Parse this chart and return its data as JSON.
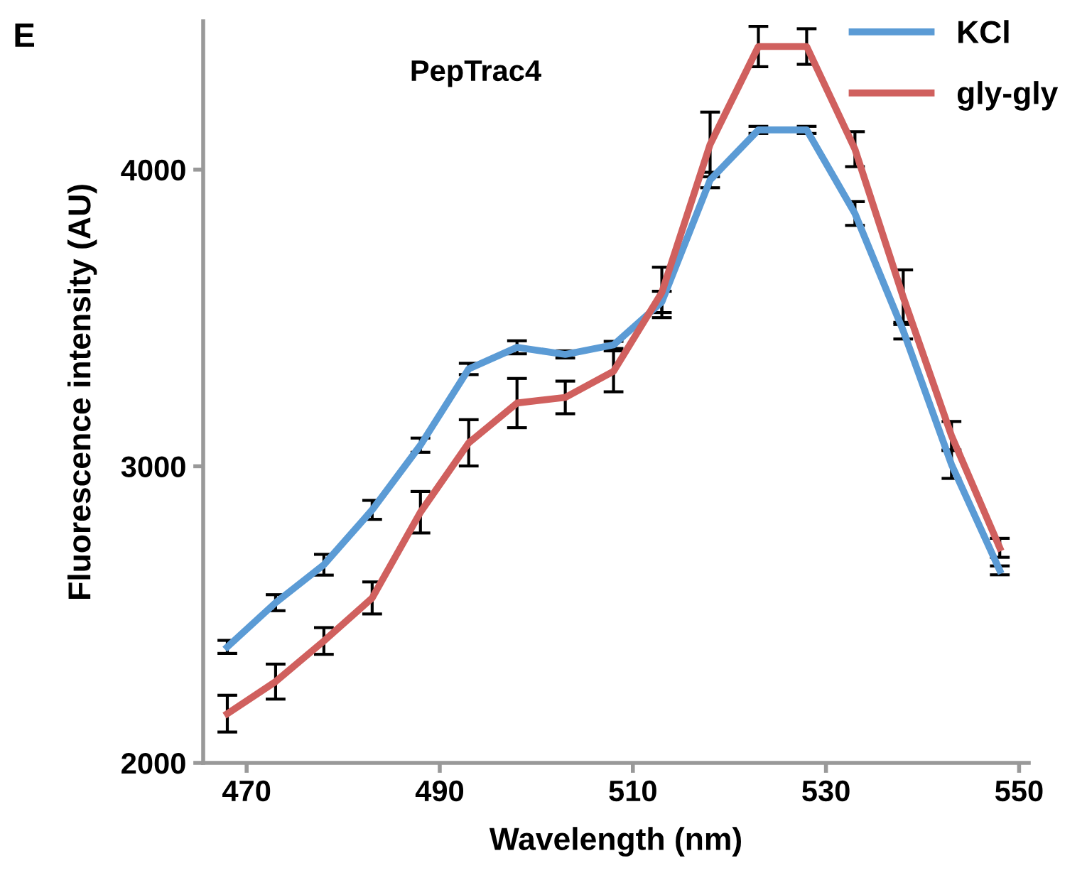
{
  "chart_data": {
    "type": "line",
    "title": "PepTrac4",
    "xlabel": "Wavelength (nm)",
    "ylabel": "Fluorescence intensity (AU)",
    "annotations": [
      "E"
    ],
    "x": [
      468,
      473,
      478,
      483,
      488,
      493,
      498,
      503,
      508,
      513,
      518,
      523,
      528,
      533,
      538,
      543,
      548
    ],
    "series": [
      {
        "name": "KCl",
        "color": "#5b9bd5",
        "values": [
          2391,
          2540,
          2668,
          2853,
          3071,
          3328,
          3401,
          3377,
          3409,
          3554,
          3965,
          4134,
          4134,
          3852,
          3457,
          3006,
          2649
        ],
        "errors": [
          22,
          27,
          35,
          32,
          24,
          19,
          22,
          12,
          12,
          36,
          26,
          12,
          12,
          40,
          28,
          47,
          15
        ]
      },
      {
        "name": "gly-gly",
        "color": "#d0605e",
        "values": [
          2166,
          2274,
          2411,
          2556,
          2845,
          3079,
          3213,
          3232,
          3320,
          3586,
          4085,
          4415,
          4415,
          4069,
          3570,
          3103,
          2725
        ],
        "errors": [
          62,
          59,
          45,
          54,
          70,
          78,
          83,
          55,
          69,
          85,
          109,
          68,
          60,
          59,
          92,
          48,
          32
        ]
      }
    ],
    "xlim": [
      465.5,
      551
    ],
    "xticks": [
      470,
      490,
      510,
      530,
      550
    ],
    "ylim": [
      2000,
      4500
    ],
    "yticks": [
      2000,
      3000,
      4000
    ],
    "grid": false,
    "legend": "top right",
    "marker": "none",
    "line_style": "solid"
  }
}
